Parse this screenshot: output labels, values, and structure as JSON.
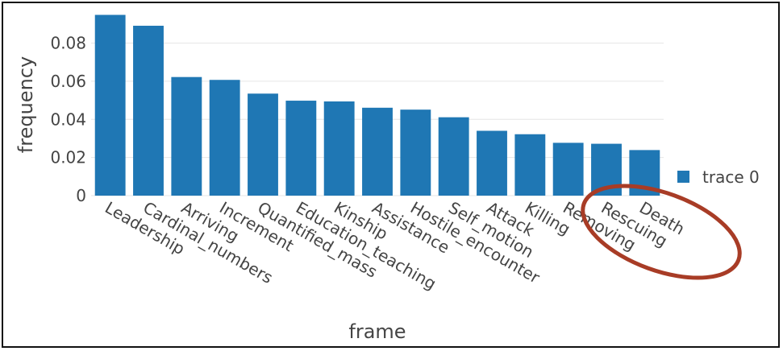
{
  "chart_data": {
    "type": "bar",
    "xlabel": "frame",
    "ylabel": "frequency",
    "ylim": [
      0,
      0.095
    ],
    "yticks": [
      0,
      0.02,
      0.04,
      0.06,
      0.08
    ],
    "ytick_labels": [
      "0",
      "0.02",
      "0.04",
      "0.06",
      "0.08"
    ],
    "grid": true,
    "legend_position": "right",
    "categories": [
      "Leadership",
      "Cardinal_numbers",
      "Arriving",
      "Increment",
      "Quantified_mass",
      "Education_teaching",
      "Kinship",
      "Assistance",
      "Hostile_encounter",
      "Self_motion",
      "Attack",
      "Killing",
      "Removing",
      "Rescuing",
      "Death"
    ],
    "series": [
      {
        "name": "trace 0",
        "values": [
          0.0948,
          0.0891,
          0.0622,
          0.0607,
          0.0535,
          0.0498,
          0.0494,
          0.0461,
          0.0451,
          0.0411,
          0.034,
          0.0322,
          0.0277,
          0.0272,
          0.0239
        ]
      }
    ]
  },
  "colors": {
    "bar": "#1f77b4",
    "annotation_ellipse": "#a83c26",
    "grid": "#e6e6e6",
    "text": "#444444"
  }
}
